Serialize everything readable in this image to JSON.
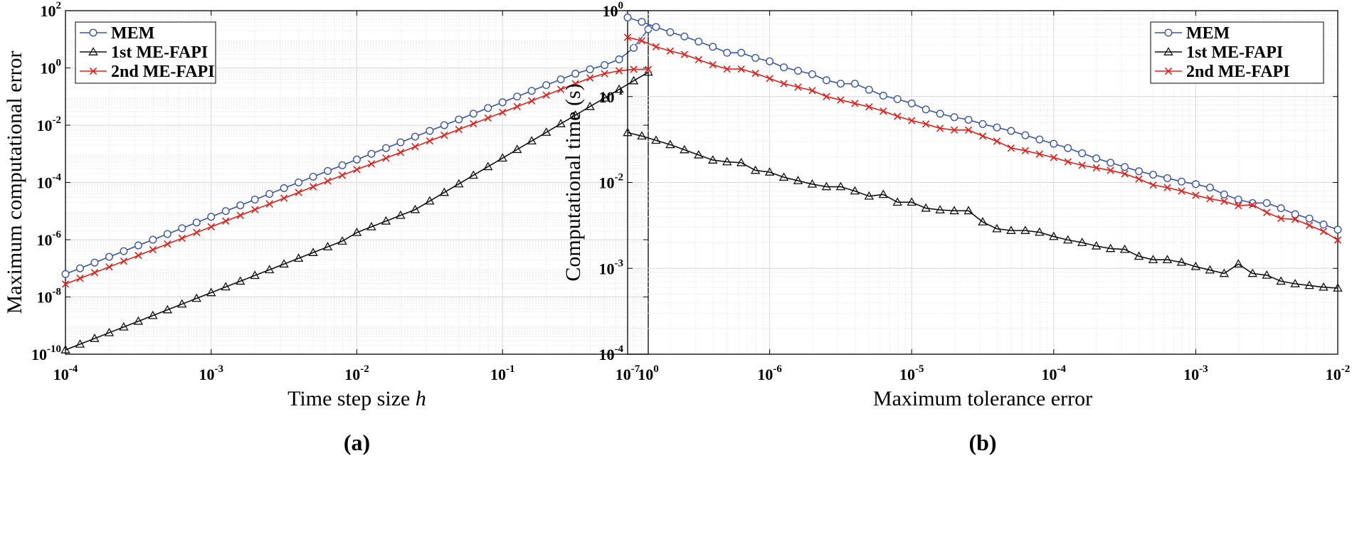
{
  "chart_data": [
    {
      "type": "line",
      "panel_label": "(a)",
      "xlabel": "Time step size",
      "xlabel_var": "h",
      "ylabel": "Maximum computational error",
      "xscale": "log",
      "yscale": "log",
      "xlim_exp": [
        -4,
        0
      ],
      "ylim_exp": [
        -10,
        2
      ],
      "xticks_exp": [
        -4,
        -3,
        -2,
        -1,
        0
      ],
      "yticks_exp": [
        -10,
        -8,
        -6,
        -4,
        -2,
        0,
        2
      ],
      "tick_base": "10",
      "grid": true,
      "minor_grid": true,
      "legend_position": "top-left",
      "series": [
        {
          "name": "MEM",
          "color": "#3a55a8",
          "marker": "circle",
          "x_exp": [
            -4,
            -3.9,
            -3.8,
            -3.7,
            -3.6,
            -3.5,
            -3.4,
            -3.3,
            -3.2,
            -3.1,
            -3,
            -2.9,
            -2.8,
            -2.7,
            -2.6,
            -2.5,
            -2.4,
            -2.3,
            -2.2,
            -2.1,
            -2,
            -1.9,
            -1.8,
            -1.7,
            -1.6,
            -1.5,
            -1.4,
            -1.3,
            -1.2,
            -1.1,
            -1,
            -0.9,
            -0.8,
            -0.7,
            -0.6,
            -0.5,
            -0.4,
            -0.3,
            -0.2,
            -0.1,
            0
          ],
          "y_exp": [
            -7.2,
            -7,
            -6.8,
            -6.6,
            -6.4,
            -6.2,
            -6,
            -5.8,
            -5.6,
            -5.4,
            -5.2,
            -5,
            -4.8,
            -4.6,
            -4.4,
            -4.2,
            -4,
            -3.8,
            -3.6,
            -3.4,
            -3.2,
            -3,
            -2.8,
            -2.6,
            -2.4,
            -2.2,
            -2,
            -1.8,
            -1.6,
            -1.4,
            -1.2,
            -1,
            -0.8,
            -0.6,
            -0.4,
            -0.2,
            -0.05,
            0.1,
            0.3,
            0.7,
            1.35
          ]
        },
        {
          "name": "1st ME-FAPI",
          "color": "#111111",
          "marker": "triangle",
          "x_exp": [
            -4,
            -3.9,
            -3.8,
            -3.7,
            -3.6,
            -3.5,
            -3.4,
            -3.3,
            -3.2,
            -3.1,
            -3,
            -2.9,
            -2.8,
            -2.7,
            -2.6,
            -2.5,
            -2.4,
            -2.3,
            -2.2,
            -2.1,
            -2,
            -1.9,
            -1.8,
            -1.7,
            -1.6,
            -1.5,
            -1.4,
            -1.3,
            -1.2,
            -1.1,
            -1,
            -0.9,
            -0.8,
            -0.7,
            -0.6,
            -0.5,
            -0.4,
            -0.3,
            -0.2,
            -0.1,
            0
          ],
          "y_exp": [
            -9.85,
            -9.65,
            -9.45,
            -9.25,
            -9.05,
            -8.85,
            -8.65,
            -8.45,
            -8.25,
            -8.05,
            -7.85,
            -7.65,
            -7.45,
            -7.25,
            -7.05,
            -6.85,
            -6.65,
            -6.45,
            -6.25,
            -6.05,
            -5.75,
            -5.55,
            -5.35,
            -5.15,
            -4.95,
            -4.65,
            -4.35,
            -4.05,
            -3.75,
            -3.45,
            -3.15,
            -2.85,
            -2.55,
            -2.25,
            -1.95,
            -1.65,
            -1.35,
            -1.05,
            -0.75,
            -0.45,
            -0.15
          ]
        },
        {
          "name": "2nd ME-FAPI",
          "color": "#e0201b",
          "marker": "x",
          "x_exp": [
            -4,
            -3.9,
            -3.8,
            -3.7,
            -3.6,
            -3.5,
            -3.4,
            -3.3,
            -3.2,
            -3.1,
            -3,
            -2.9,
            -2.8,
            -2.7,
            -2.6,
            -2.5,
            -2.4,
            -2.3,
            -2.2,
            -2.1,
            -2,
            -1.9,
            -1.8,
            -1.7,
            -1.6,
            -1.5,
            -1.4,
            -1.3,
            -1.2,
            -1.1,
            -1,
            -0.9,
            -0.8,
            -0.7,
            -0.6,
            -0.5,
            -0.4,
            -0.3,
            -0.2,
            -0.1,
            0
          ],
          "y_exp": [
            -7.55,
            -7.35,
            -7.15,
            -6.95,
            -6.75,
            -6.55,
            -6.35,
            -6.15,
            -5.95,
            -5.75,
            -5.55,
            -5.35,
            -5.15,
            -4.95,
            -4.75,
            -4.55,
            -4.35,
            -4.15,
            -3.95,
            -3.75,
            -3.55,
            -3.35,
            -3.15,
            -2.95,
            -2.75,
            -2.55,
            -2.35,
            -2.15,
            -1.95,
            -1.75,
            -1.55,
            -1.35,
            -1.15,
            -0.95,
            -0.75,
            -0.55,
            -0.35,
            -0.2,
            -0.1,
            -0.05,
            -0.05
          ]
        }
      ]
    },
    {
      "type": "line",
      "panel_label": "(b)",
      "xlabel": "Maximum tolerance error",
      "ylabel": "Computational time (s)",
      "xscale": "log",
      "yscale": "log",
      "xlim_exp": [
        -7,
        -2
      ],
      "ylim_exp": [
        -4,
        0
      ],
      "xticks_exp": [
        -7,
        -6,
        -5,
        -4,
        -3,
        -2
      ],
      "yticks_exp": [
        -4,
        -3,
        -2,
        -1,
        0
      ],
      "tick_base": "10",
      "grid": true,
      "minor_grid": true,
      "legend_position": "top-right",
      "series": [
        {
          "name": "MEM",
          "color": "#3a55a8",
          "marker": "circle",
          "x_exp": [
            -7,
            -6.9,
            -6.8,
            -6.7,
            -6.6,
            -6.5,
            -6.4,
            -6.3,
            -6.2,
            -6.1,
            -6,
            -5.9,
            -5.8,
            -5.7,
            -5.6,
            -5.5,
            -5.4,
            -5.3,
            -5.2,
            -5.1,
            -5,
            -4.9,
            -4.8,
            -4.7,
            -4.6,
            -4.5,
            -4.4,
            -4.3,
            -4.2,
            -4.1,
            -4,
            -3.9,
            -3.8,
            -3.7,
            -3.6,
            -3.5,
            -3.4,
            -3.3,
            -3.2,
            -3.1,
            -3,
            -2.9,
            -2.8,
            -2.7,
            -2.6,
            -2.5,
            -2.4,
            -2.3,
            -2.2,
            -2.1,
            -2
          ],
          "y_exp": [
            -0.08,
            -0.13,
            -0.19,
            -0.25,
            -0.3,
            -0.36,
            -0.42,
            -0.49,
            -0.49,
            -0.55,
            -0.59,
            -0.66,
            -0.7,
            -0.74,
            -0.81,
            -0.85,
            -0.85,
            -0.92,
            -0.99,
            -1.03,
            -1.08,
            -1.15,
            -1.2,
            -1.24,
            -1.27,
            -1.32,
            -1.36,
            -1.4,
            -1.45,
            -1.5,
            -1.55,
            -1.6,
            -1.66,
            -1.72,
            -1.77,
            -1.82,
            -1.87,
            -1.91,
            -1.95,
            -1.99,
            -2.02,
            -2.06,
            -2.14,
            -2.2,
            -2.24,
            -2.24,
            -2.3,
            -2.37,
            -2.42,
            -2.49,
            -2.55
          ]
        },
        {
          "name": "1st ME-FAPI",
          "color": "#111111",
          "marker": "triangle",
          "x_exp": [
            -7,
            -6.9,
            -6.8,
            -6.7,
            -6.6,
            -6.5,
            -6.4,
            -6.3,
            -6.2,
            -6.1,
            -6,
            -5.9,
            -5.8,
            -5.7,
            -5.6,
            -5.5,
            -5.4,
            -5.3,
            -5.2,
            -5.1,
            -5,
            -4.9,
            -4.8,
            -4.7,
            -4.6,
            -4.5,
            -4.4,
            -4.3,
            -4.2,
            -4.1,
            -4,
            -3.9,
            -3.8,
            -3.7,
            -3.6,
            -3.5,
            -3.4,
            -3.3,
            -3.2,
            -3.1,
            -3,
            -2.9,
            -2.8,
            -2.7,
            -2.6,
            -2.5,
            -2.4,
            -2.3,
            -2.2,
            -2.1,
            -2
          ],
          "y_exp": [
            -1.42,
            -1.46,
            -1.51,
            -1.56,
            -1.62,
            -1.68,
            -1.74,
            -1.76,
            -1.77,
            -1.86,
            -1.88,
            -1.94,
            -1.98,
            -2.02,
            -2.05,
            -2.05,
            -2.1,
            -2.16,
            -2.14,
            -2.23,
            -2.23,
            -2.3,
            -2.32,
            -2.33,
            -2.33,
            -2.46,
            -2.54,
            -2.56,
            -2.56,
            -2.58,
            -2.63,
            -2.67,
            -2.7,
            -2.74,
            -2.77,
            -2.78,
            -2.86,
            -2.9,
            -2.9,
            -2.93,
            -2.98,
            -3.02,
            -3.06,
            -2.95,
            -3.06,
            -3.08,
            -3.15,
            -3.18,
            -3.2,
            -3.22,
            -3.23
          ]
        },
        {
          "name": "2nd ME-FAPI",
          "color": "#e0201b",
          "marker": "x",
          "x_exp": [
            -7,
            -6.9,
            -6.8,
            -6.7,
            -6.6,
            -6.5,
            -6.4,
            -6.3,
            -6.2,
            -6.1,
            -6,
            -5.9,
            -5.8,
            -5.7,
            -5.6,
            -5.5,
            -5.4,
            -5.3,
            -5.2,
            -5.1,
            -5,
            -4.9,
            -4.8,
            -4.7,
            -4.6,
            -4.5,
            -4.4,
            -4.3,
            -4.2,
            -4.1,
            -4,
            -3.9,
            -3.8,
            -3.7,
            -3.6,
            -3.5,
            -3.4,
            -3.3,
            -3.2,
            -3.1,
            -3,
            -2.9,
            -2.8,
            -2.7,
            -2.6,
            -2.5,
            -2.4,
            -2.3,
            -2.2,
            -2.1,
            -2
          ],
          "y_exp": [
            -0.31,
            -0.35,
            -0.42,
            -0.47,
            -0.51,
            -0.57,
            -0.63,
            -0.68,
            -0.68,
            -0.73,
            -0.79,
            -0.85,
            -0.89,
            -0.93,
            -1,
            -1.04,
            -1.08,
            -1.12,
            -1.17,
            -1.23,
            -1.28,
            -1.32,
            -1.37,
            -1.39,
            -1.39,
            -1.46,
            -1.52,
            -1.6,
            -1.63,
            -1.67,
            -1.71,
            -1.76,
            -1.8,
            -1.83,
            -1.86,
            -1.9,
            -1.96,
            -2.03,
            -2.06,
            -2.1,
            -2.15,
            -2.19,
            -2.22,
            -2.27,
            -2.26,
            -2.35,
            -2.42,
            -2.43,
            -2.5,
            -2.57,
            -2.67
          ]
        }
      ]
    }
  ]
}
